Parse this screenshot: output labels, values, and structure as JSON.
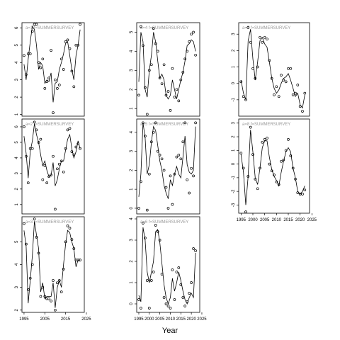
{
  "figure": {
    "xlabel": "Year"
  },
  "chart_data": [
    {
      "type": "line",
      "label": "a=1 f=SUMMERSURVEY",
      "xlim": [
        1994,
        2024
      ],
      "ylim": [
        0.9,
        6.3
      ],
      "yticks": [
        1,
        2,
        3,
        4,
        5,
        6
      ],
      "show_xticks": false,
      "x": [
        1995,
        1996,
        1997,
        1998,
        1999,
        2000,
        2001,
        2002,
        2003,
        2004,
        2005,
        2006,
        2007,
        2008,
        2009,
        2010,
        2011,
        2012,
        2013,
        2014,
        2015,
        2016,
        2017,
        2018,
        2019,
        2020,
        2021,
        2022
      ],
      "points": [
        4.4,
        3.3,
        4.5,
        4.5,
        5.8,
        6.2,
        6.2,
        4.0,
        3.7,
        4.2,
        2.5,
        2.9,
        3.1,
        4.7,
        1.1,
        3.0,
        2.5,
        2.7,
        4.2,
        3.6,
        5.2,
        5.3,
        4.8,
        3.5,
        2.6,
        5.0,
        5.0,
        6.2
      ],
      "fitted": [
        3.9,
        3.0,
        4.2,
        5.2,
        6.1,
        5.9,
        5.0,
        3.6,
        4.0,
        3.8,
        2.8,
        3.0,
        2.9,
        3.4,
        1.7,
        2.8,
        2.9,
        3.6,
        4.0,
        4.5,
        5.1,
        5.2,
        4.4,
        3.6,
        3.0,
        4.4,
        5.0,
        5.9
      ]
    },
    {
      "type": "line",
      "label": "a=4 f=SUMMERSURVEY",
      "xlim": [
        1994,
        2024
      ],
      "ylim": [
        0.6,
        5.5
      ],
      "yticks": [
        1,
        2,
        3,
        4,
        5
      ],
      "show_xticks": false,
      "x": [
        1995,
        1996,
        1997,
        1998,
        1999,
        2000,
        2001,
        2002,
        2003,
        2004,
        2005,
        2006,
        2007,
        2008,
        2009,
        2010,
        2011,
        2012,
        2013,
        2014,
        2015,
        2016,
        2017,
        2018,
        2019,
        2020,
        2021,
        2022
      ],
      "points": [
        1.7,
        5.3,
        4.3,
        2.1,
        0.7,
        3.0,
        3.3,
        5.2,
        4.4,
        4.0,
        2.6,
        2.3,
        3.3,
        1.7,
        1.9,
        0.9,
        3.1,
        1.6,
        2.0,
        1.4,
        2.5,
        2.9,
        3.6,
        4.0,
        4.5,
        4.9,
        5.0,
        3.8
      ],
      "fitted": [
        2.4,
        5.0,
        4.5,
        2.0,
        1.6,
        3.0,
        3.8,
        5.0,
        4.5,
        3.5,
        2.6,
        2.8,
        2.5,
        1.7,
        1.5,
        1.7,
        2.5,
        2.0,
        1.5,
        2.0,
        2.5,
        2.9,
        3.5,
        4.3,
        4.4,
        4.6,
        4.5,
        4.0
      ]
    },
    {
      "type": "line",
      "label": "a=7 f=SUMMERSURVEY",
      "xlim": [
        1994,
        2024
      ],
      "ylim": [
        -2.0,
        3.7
      ],
      "yticks": [
        -1,
        0,
        1,
        2,
        3
      ],
      "show_xticks": false,
      "x": [
        1995,
        1996,
        1997,
        1998,
        1999,
        2000,
        2001,
        2002,
        2003,
        2004,
        2005,
        2006,
        2007,
        2008,
        2009,
        2010,
        2011,
        2012,
        2013,
        2014,
        2015,
        2016,
        2017,
        2018,
        2019,
        2020,
        2021,
        2022
      ],
      "points": [
        0.1,
        -0.8,
        -1.0,
        3.4,
        2.5,
        0.9,
        0.3,
        1.0,
        2.8,
        2.5,
        2.8,
        2.7,
        1.4,
        0.3,
        -0.7,
        -0.2,
        -0.8,
        0.5,
        0.2,
        0.1,
        0.9,
        0.9,
        -0.7,
        -0.6,
        -0.1,
        -1.4,
        -1.7,
        -0.6
      ],
      "fitted": [
        0.2,
        -0.6,
        -1.0,
        2.6,
        3.3,
        1.5,
        0.2,
        1.3,
        2.6,
        2.8,
        2.4,
        2.2,
        1.3,
        0.3,
        -0.3,
        -0.6,
        -0.4,
        0.0,
        0.3,
        0.4,
        0.6,
        0.2,
        -0.3,
        -0.8,
        -0.6,
        -1.3,
        -1.5,
        -0.7
      ]
    },
    {
      "type": "line",
      "label": "a=2 f=SUMMERSURVEY",
      "xlim": [
        1994,
        2024
      ],
      "ylim": [
        0.4,
        6.5
      ],
      "yticks": [
        1,
        2,
        3,
        4,
        5,
        6
      ],
      "show_xticks": false,
      "x": [
        1995,
        1996,
        1997,
        1998,
        1999,
        2000,
        2001,
        2002,
        2003,
        2004,
        2005,
        2006,
        2007,
        2008,
        2009,
        2010,
        2011,
        2012,
        2013,
        2014,
        2015,
        2016,
        2017,
        2018,
        2019,
        2020,
        2021,
        2022
      ],
      "points": [
        6.0,
        4.1,
        2.4,
        4.6,
        4.6,
        6.3,
        5.8,
        5.0,
        5.2,
        2.6,
        3.5,
        2.4,
        2.8,
        2.9,
        4.1,
        0.7,
        3.3,
        3.6,
        3.8,
        3.1,
        4.6,
        5.8,
        5.9,
        4.4,
        4.2,
        4.7,
        4.9,
        4.6
      ],
      "fitted": [
        5.4,
        4.3,
        2.7,
        4.4,
        5.1,
        6.2,
        5.5,
        5.0,
        4.2,
        3.5,
        3.8,
        3.2,
        2.8,
        2.9,
        3.7,
        2.2,
        2.6,
        3.3,
        3.8,
        3.8,
        4.5,
        5.2,
        5.5,
        4.6,
        4.0,
        4.4,
        5.1,
        4.6
      ]
    },
    {
      "type": "line",
      "label": "a=5 f=SUMMERSURVEY",
      "xlim": [
        1994,
        2024
      ],
      "ylim": [
        -0.3,
        4.7
      ],
      "yticks": [
        0,
        1,
        2,
        3,
        4
      ],
      "show_xticks": false,
      "x": [
        1995,
        1996,
        1997,
        1998,
        1999,
        2000,
        2001,
        2002,
        2003,
        2004,
        2005,
        2006,
        2007,
        2008,
        2009,
        2010,
        2011,
        2012,
        2013,
        2014,
        2015,
        2016,
        2017,
        2018,
        2019,
        2020,
        2021,
        2022
      ],
      "points": [
        0.0,
        1.4,
        4.5,
        3.8,
        -0.1,
        1.8,
        3.5,
        4.0,
        4.5,
        3.0,
        2.8,
        2.6,
        2.0,
        1.1,
        0.0,
        1.7,
        0.2,
        1.8,
        2.7,
        2.8,
        2.6,
        3.5,
        4.5,
        1.5,
        0.8,
        2.1,
        1.7,
        4.5
      ],
      "fitted": [
        0.6,
        1.8,
        4.5,
        3.7,
        1.8,
        2.3,
        3.5,
        4.3,
        4.1,
        3.3,
        2.5,
        2.0,
        1.2,
        0.8,
        0.5,
        1.5,
        1.2,
        1.8,
        2.2,
        1.8,
        1.6,
        2.7,
        3.8,
        2.3,
        1.9,
        1.8,
        2.0,
        4.3
      ]
    },
    {
      "type": "line",
      "label": "a=8 f=SUMMERSURVEY",
      "xlim": [
        1994,
        2024
      ],
      "ylim": [
        -3.6,
        3.3
      ],
      "yticks": [
        -3,
        -2,
        -1,
        0,
        1,
        2,
        3
      ],
      "show_xticks": true,
      "xticks": [
        1995,
        2000,
        2005,
        2010,
        2015,
        2020,
        2025
      ],
      "x": [
        1995,
        1996,
        1997,
        1998,
        1999,
        2000,
        2001,
        2002,
        2003,
        2004,
        2005,
        2006,
        2007,
        2008,
        2009,
        2010,
        2011,
        2012,
        2013,
        2014,
        2015,
        2016,
        2017,
        2018,
        2019,
        2020,
        2021,
        2022
      ],
      "points": [
        0.8,
        -0.3,
        -3.5,
        -0.9,
        2.7,
        0.7,
        -1.1,
        -1.8,
        -0.3,
        1.6,
        1.8,
        1.9,
        0.0,
        -0.5,
        -0.8,
        -1.3,
        -1.5,
        0.2,
        0.3,
        1.0,
        1.8,
        0.6,
        -0.3,
        -1.1,
        -2.1,
        -2.2,
        -2.2,
        -1.9
      ],
      "fitted": [
        0.7,
        -0.6,
        -3.0,
        -0.9,
        2.5,
        0.9,
        -1.0,
        -1.5,
        -0.3,
        1.2,
        1.7,
        1.7,
        0.5,
        -0.4,
        -0.9,
        -1.2,
        -1.6,
        -0.6,
        0.2,
        0.9,
        1.2,
        0.9,
        -0.3,
        -1.0,
        -2.0,
        -2.2,
        -2.0,
        -1.6
      ]
    },
    {
      "type": "line",
      "label": "a=3 f=SUMMERSURVEY",
      "xlim": [
        1994,
        2024
      ],
      "ylim": [
        1.9,
        6.1
      ],
      "yticks": [
        2,
        3,
        4,
        5
      ],
      "show_xticks": true,
      "xticks": [
        1995,
        2005,
        2015,
        2025
      ],
      "x": [
        1995,
        1996,
        1997,
        1998,
        1999,
        2000,
        2001,
        2002,
        2003,
        2004,
        2005,
        2006,
        2007,
        2008,
        2009,
        2010,
        2011,
        2012,
        2013,
        2014,
        2015,
        2016,
        2017,
        2018,
        2019,
        2020,
        2021,
        2022
      ],
      "points": [
        5.8,
        4.9,
        2.9,
        3.4,
        4.0,
        6.0,
        5.2,
        4.5,
        2.6,
        3.0,
        2.6,
        2.5,
        2.5,
        2.4,
        3.3,
        2.0,
        3.2,
        3.3,
        2.8,
        3.8,
        5.0,
        5.7,
        5.6,
        5.1,
        4.7,
        4.2,
        4.2,
        4.2
      ],
      "fitted": [
        5.5,
        4.8,
        2.3,
        3.3,
        4.4,
        5.9,
        5.3,
        4.7,
        2.8,
        3.2,
        2.5,
        2.6,
        2.6,
        2.6,
        3.2,
        2.1,
        3.0,
        3.3,
        3.0,
        4.0,
        4.9,
        5.5,
        5.4,
        5.0,
        4.7,
        3.9,
        4.2,
        4.2
      ]
    },
    {
      "type": "line",
      "label": "a=6 f=SUMMERSURVEY",
      "xlim": [
        1994,
        2024
      ],
      "ylim": [
        -0.4,
        4.1
      ],
      "yticks": [
        0,
        1,
        2,
        3,
        4
      ],
      "show_xticks": true,
      "xticks": [
        1995,
        2000,
        2005,
        2010,
        2015,
        2020,
        2025
      ],
      "x": [
        1995,
        1996,
        1997,
        1998,
        1999,
        2000,
        2001,
        2002,
        2003,
        2004,
        2005,
        2006,
        2007,
        2008,
        2009,
        2010,
        2011,
        2012,
        2013,
        2014,
        2015,
        2016,
        2017,
        2018,
        2019,
        2020,
        2021,
        2022
      ],
      "points": [
        0.2,
        -0.2,
        3.8,
        3.1,
        1.1,
        -0.2,
        1.1,
        1.5,
        3.7,
        3.4,
        3.0,
        1.4,
        0.3,
        0.0,
        -0.1,
        -0.2,
        1.6,
        0.2,
        1.5,
        1.7,
        0.9,
        0.3,
        -0.1,
        0.1,
        0.5,
        1.0,
        2.6,
        2.5
      ],
      "fitted": [
        0.4,
        0.1,
        3.6,
        3.0,
        1.5,
        1.0,
        1.5,
        2.0,
        3.4,
        3.5,
        2.9,
        1.9,
        0.9,
        0.3,
        0.0,
        0.3,
        1.2,
        0.6,
        1.0,
        1.5,
        1.1,
        0.6,
        0.2,
        0.0,
        0.3,
        0.5,
        0.3,
        2.4
      ]
    }
  ]
}
